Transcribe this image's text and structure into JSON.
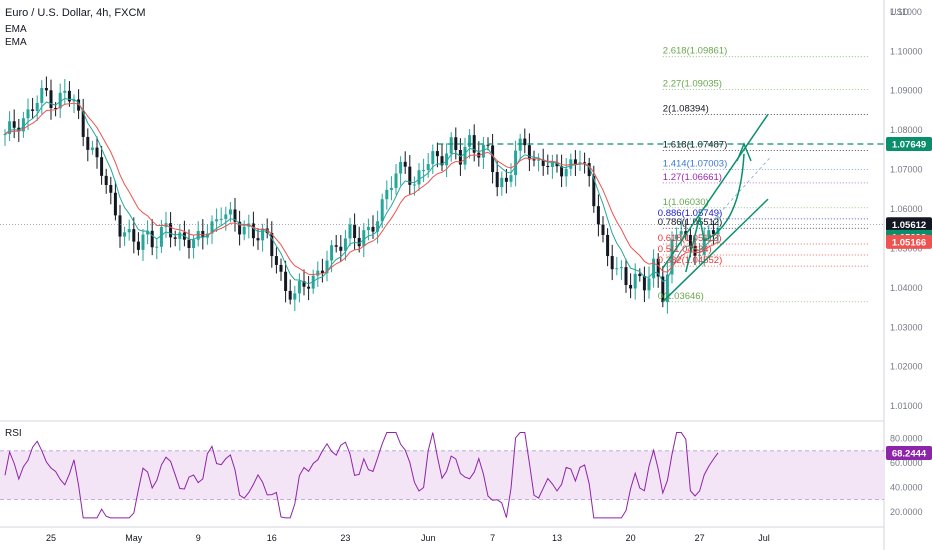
{
  "header": {
    "title": "Euro / U.S. Dollar, 4h, FXCM",
    "indicators": [
      "EMA",
      "EMA"
    ]
  },
  "colors": {
    "up": "#26a69a",
    "down": "#131722",
    "ema_fast": "#26a69a",
    "ema_slow": "#ef5350",
    "rsi_line": "#8e24aa",
    "rsi_band": "#f3e5f5",
    "channel": "#0a8f6d"
  },
  "chart_data": [
    {
      "type": "candlestick",
      "title": "Euro / U.S. Dollar, 4h, FXCM",
      "currency_label": "USD",
      "ylim": [
        1.007,
        1.113
      ],
      "y_ticks": [
        "1.11000",
        "1.10000",
        "1.09000",
        "1.08000",
        "1.07000",
        "1.06000",
        "1.05000",
        "1.04000",
        "1.03000",
        "1.02000",
        "1.01000"
      ],
      "x_ticks": [
        "25",
        "May",
        "9",
        "16",
        "23",
        "Jun",
        "7",
        "13",
        "20",
        "27",
        "Jul"
      ],
      "close_path": [
        [
          0,
          1.078
        ],
        [
          3,
          1.082
        ],
        [
          6,
          1.086
        ],
        [
          9,
          1.089
        ],
        [
          11,
          1.087
        ],
        [
          13,
          1.09
        ],
        [
          15,
          1.086
        ],
        [
          17,
          1.08
        ],
        [
          19,
          1.075
        ],
        [
          21,
          1.069
        ],
        [
          23,
          1.062
        ],
        [
          25,
          1.056
        ],
        [
          27,
          1.053
        ],
        [
          29,
          1.05
        ],
        [
          31,
          1.054
        ],
        [
          33,
          1.052
        ],
        [
          35,
          1.055
        ],
        [
          37,
          1.052
        ],
        [
          39,
          1.054
        ],
        [
          41,
          1.051
        ],
        [
          43,
          1.053
        ],
        [
          45,
          1.056
        ],
        [
          47,
          1.06
        ],
        [
          49,
          1.057
        ],
        [
          51,
          1.055
        ],
        [
          53,
          1.056
        ],
        [
          55,
          1.053
        ],
        [
          57,
          1.052
        ],
        [
          59,
          1.047
        ],
        [
          61,
          1.04
        ],
        [
          63,
          1.037
        ],
        [
          65,
          1.041
        ],
        [
          67,
          1.043
        ],
        [
          69,
          1.045
        ],
        [
          71,
          1.048
        ],
        [
          73,
          1.052
        ],
        [
          75,
          1.055
        ],
        [
          77,
          1.051
        ],
        [
          79,
          1.054
        ],
        [
          81,
          1.059
        ],
        [
          83,
          1.064
        ],
        [
          85,
          1.068
        ],
        [
          87,
          1.072
        ],
        [
          89,
          1.066
        ],
        [
          91,
          1.07
        ],
        [
          93,
          1.073
        ],
        [
          95,
          1.074
        ],
        [
          97,
          1.076
        ],
        [
          99,
          1.072
        ],
        [
          101,
          1.078
        ],
        [
          103,
          1.075
        ],
        [
          105,
          1.074
        ],
        [
          107,
          1.066
        ],
        [
          109,
          1.068
        ],
        [
          111,
          1.074
        ],
        [
          113,
          1.076
        ],
        [
          115,
          1.072
        ],
        [
          117,
          1.073
        ],
        [
          119,
          1.069
        ],
        [
          121,
          1.07
        ],
        [
          123,
          1.072
        ],
        [
          125,
          1.073
        ],
        [
          127,
          1.066
        ],
        [
          129,
          1.058
        ],
        [
          131,
          1.048
        ],
        [
          133,
          1.044
        ],
        [
          135,
          1.041
        ],
        [
          137,
          1.044
        ],
        [
          139,
          1.04
        ],
        [
          141,
          1.045
        ],
        [
          143,
          1.039
        ],
        [
          145,
          1.051
        ],
        [
          147,
          1.055
        ],
        [
          149,
          1.049
        ],
        [
          151,
          1.051
        ],
        [
          153,
          1.053
        ],
        [
          155,
          1.055
        ]
      ],
      "last_bar_index": 155,
      "x_tick_bar_index": [
        10,
        28,
        42,
        58,
        74,
        92,
        106,
        120,
        136,
        151,
        165
      ],
      "price_labels": [
        {
          "text": "1.07649",
          "value": 1.07649,
          "bg": "#0a8f6d"
        },
        {
          "text": "1.05612",
          "value": 1.05612,
          "bg": "#131722"
        },
        {
          "text": "1.05293",
          "value": 1.05293,
          "bg": "#0a8f6d"
        },
        {
          "text": "1.05166",
          "value": 1.05166,
          "bg": "#ef5350"
        }
      ],
      "fib_levels": [
        {
          "label": "2.618(1.09861)",
          "value": 1.09861,
          "color": "#6aa84f"
        },
        {
          "label": "2.27(1.09035)",
          "value": 1.09035,
          "color": "#6aa84f"
        },
        {
          "label": "2(1.08394)",
          "value": 1.08394,
          "color": "#131722"
        },
        {
          "label": "1.618(1.07487)",
          "value": 1.07487,
          "color": "#131722"
        },
        {
          "label": "1.414(1.07003)",
          "value": 1.07003,
          "color": "#3c78d8"
        },
        {
          "label": "1.27(1.06661)",
          "value": 1.06661,
          "color": "#9c27b0"
        },
        {
          "label": "1(1.06030)",
          "value": 1.0603,
          "color": "#6aa84f"
        },
        {
          "label": "0.886(1.05749)",
          "value": 1.05749,
          "color": "#1c1ccc"
        },
        {
          "label": "0.786(1.05512)",
          "value": 1.05512,
          "color": "#131722"
        },
        {
          "label": "0.618(1.05113)",
          "value": 1.05113,
          "color": "#e53935"
        },
        {
          "label": "0.5(1.04834)",
          "value": 1.04834,
          "color": "#e53935"
        },
        {
          "label": "0.382(1.04552)",
          "value": 1.04552,
          "color": "#e53935"
        },
        {
          "label": "0(1.03646)",
          "value": 1.03646,
          "color": "#6aa84f"
        }
      ]
    },
    {
      "type": "line",
      "title": "RSI",
      "ylim": [
        10,
        92
      ],
      "y_ticks": [
        "80.0000",
        "60.0000",
        "40.0000",
        "20.0000"
      ],
      "band": [
        70,
        30
      ],
      "last_value": "68.2444"
    }
  ]
}
